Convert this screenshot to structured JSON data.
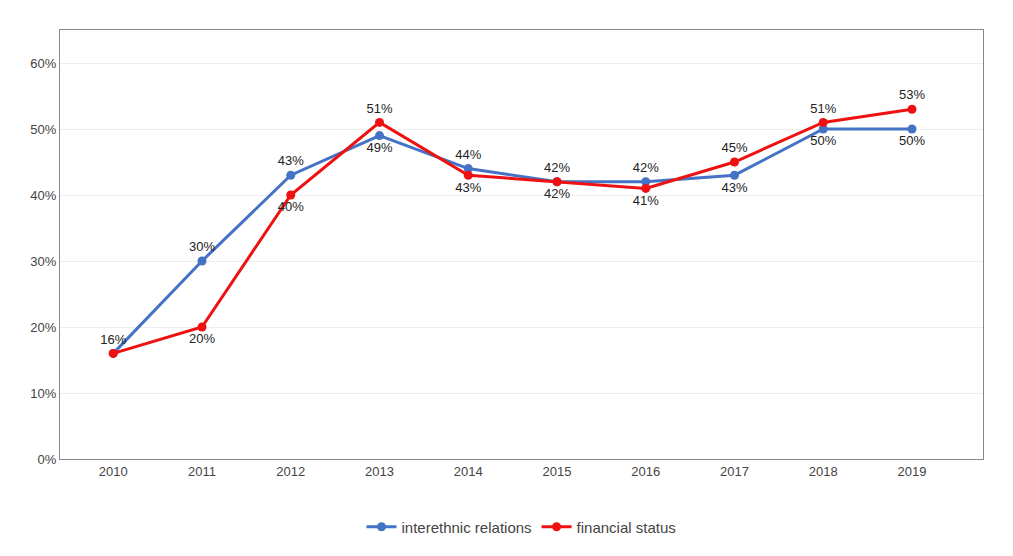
{
  "chart_data": {
    "type": "line",
    "x": [
      2010,
      2011,
      2012,
      2013,
      2014,
      2015,
      2016,
      2017,
      2018,
      2019
    ],
    "series": [
      {
        "name": "interethnic relations",
        "color": "#4472C4",
        "values": [
          0.16,
          0.3,
          0.43,
          0.49,
          0.44,
          0.42,
          0.42,
          0.43,
          0.5,
          0.5
        ],
        "value_labels": [
          "16%",
          "30%",
          "43%",
          "49%",
          "44%",
          "42%",
          "42%",
          "43%",
          "50%",
          "50%"
        ]
      },
      {
        "name": "financial status",
        "color": "#EE1111",
        "values": [
          0.16,
          0.2,
          0.4,
          0.51,
          0.43,
          0.42,
          0.41,
          0.45,
          0.51,
          0.53
        ],
        "value_labels": [
          null,
          "20%",
          "40%",
          "51%",
          "43%",
          "42%",
          "41%",
          "45%",
          "51%",
          "53%"
        ]
      }
    ],
    "xlim": [
      2009.4,
      2019.8
    ],
    "xticks": [
      2010,
      2011,
      2012,
      2013,
      2014,
      2015,
      2016,
      2017,
      2018,
      2019
    ],
    "ylim": [
      0.0,
      0.65
    ],
    "yticks": [
      {
        "value": 0.0,
        "label": "0%"
      },
      {
        "value": 0.1,
        "label": "10%"
      },
      {
        "value": 0.2,
        "label": "20%"
      },
      {
        "value": 0.3,
        "label": "30%"
      },
      {
        "value": 0.4,
        "label": "40%"
      },
      {
        "value": 0.5,
        "label": "50%"
      },
      {
        "value": 0.6,
        "label": "60%"
      }
    ],
    "grid": true,
    "legend": "bottom",
    "data_labels": true,
    "marker": "circle"
  }
}
